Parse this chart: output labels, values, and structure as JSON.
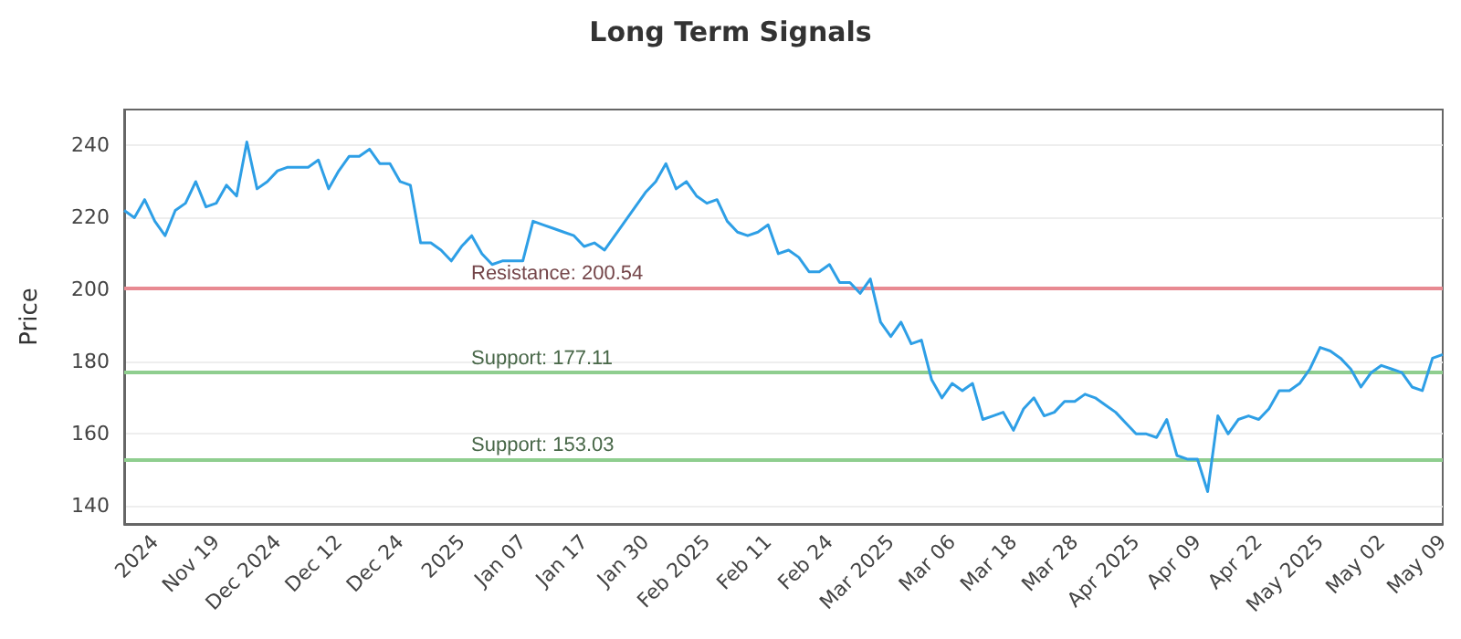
{
  "chart_data": {
    "type": "line",
    "title": "Long Term Signals",
    "ylabel": "Price",
    "categories": [
      null,
      null,
      null,
      "2024",
      null,
      null,
      null,
      null,
      null,
      "Nov 19",
      null,
      null,
      null,
      null,
      null,
      "Dec 2024",
      null,
      null,
      null,
      null,
      null,
      "Dec 12",
      null,
      null,
      null,
      null,
      null,
      "Dec 24",
      null,
      null,
      null,
      null,
      null,
      "2025",
      null,
      null,
      null,
      null,
      null,
      "Jan 07",
      null,
      null,
      null,
      null,
      null,
      "Jan 17",
      null,
      null,
      null,
      null,
      null,
      "Jan 30",
      null,
      null,
      null,
      null,
      null,
      "Feb 2025",
      null,
      null,
      null,
      null,
      null,
      "Feb 11",
      null,
      null,
      null,
      null,
      null,
      "Feb 24",
      null,
      null,
      null,
      null,
      null,
      "Mar 2025",
      null,
      null,
      null,
      null,
      null,
      "Mar 06",
      null,
      null,
      null,
      null,
      null,
      "Mar 18",
      null,
      null,
      null,
      null,
      null,
      "Mar 28",
      null,
      null,
      null,
      null,
      null,
      "Apr 2025",
      null,
      null,
      null,
      null,
      null,
      "Apr 09",
      null,
      null,
      null,
      null,
      null,
      "Apr 22",
      null,
      null,
      null,
      null,
      null,
      "May 2025",
      null,
      null,
      null,
      null,
      null,
      "May 02",
      null,
      null,
      null,
      null,
      null,
      "May 09"
    ],
    "series": [
      {
        "color": "#2e9fe6",
        "values": [
          222,
          220,
          225,
          219,
          215,
          222,
          224,
          230,
          223,
          224,
          229,
          226,
          241,
          228,
          230,
          233,
          234,
          234,
          234,
          236,
          228,
          233,
          237,
          237,
          239,
          235,
          235,
          230,
          229,
          213,
          213,
          211,
          208,
          212,
          215,
          210,
          207,
          208,
          208,
          208,
          219,
          218,
          217,
          216,
          215,
          212,
          213,
          211,
          215,
          219,
          223,
          227,
          230,
          235,
          228,
          230,
          226,
          224,
          225,
          219,
          216,
          215,
          216,
          218,
          210,
          211,
          209,
          205,
          205,
          207,
          202,
          202,
          199,
          203,
          191,
          187,
          191,
          185,
          186,
          175,
          170,
          174,
          172,
          174,
          164,
          165,
          166,
          161,
          167,
          170,
          165,
          166,
          169,
          169,
          171,
          170,
          168,
          166,
          163,
          160,
          160,
          159,
          164,
          154,
          153,
          153,
          144,
          165,
          160,
          164,
          165,
          164,
          167,
          172,
          172,
          174,
          178,
          184,
          183,
          181,
          178,
          173,
          177,
          179,
          178,
          177,
          173,
          172,
          181,
          182
        ]
      }
    ],
    "ylim": [
      135,
      250
    ],
    "yticks": [
      140,
      160,
      180,
      200,
      220,
      240
    ],
    "grid": "y",
    "marker": "none",
    "line_style": "solid",
    "ref_lines": [
      {
        "axis": "y",
        "value": 200.54,
        "label": "Resistance: 200.54",
        "color": "#e88a92"
      },
      {
        "axis": "y",
        "value": 177.11,
        "label": "Support: 177.11",
        "color": "#8fce8f"
      },
      {
        "axis": "y",
        "value": 153.03,
        "label": "Support: 153.03",
        "color": "#8fce8f"
      }
    ]
  }
}
